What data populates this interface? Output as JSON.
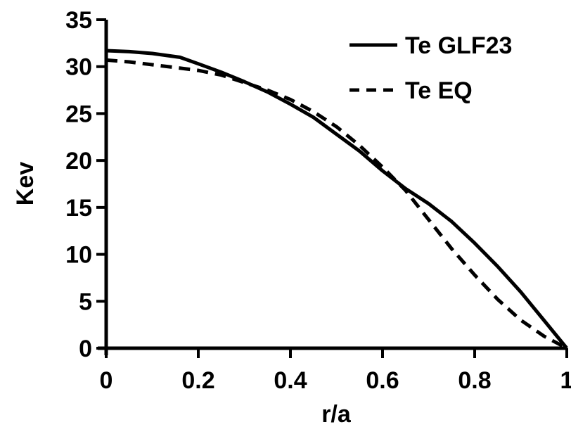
{
  "chart_data": {
    "type": "line",
    "title": "",
    "xlabel": "r/a",
    "ylabel": "Kev",
    "xlim": [
      0,
      1
    ],
    "ylim": [
      0,
      35
    ],
    "x_ticks": [
      0,
      0.2,
      0.4,
      0.6,
      0.8,
      1
    ],
    "x_tick_labels": [
      "0",
      "0.2",
      "0.4",
      "0.6",
      "0.8",
      "1"
    ],
    "y_ticks": [
      0,
      5,
      10,
      15,
      20,
      25,
      30,
      35
    ],
    "y_tick_labels": [
      "0",
      "5",
      "10",
      "15",
      "20",
      "25",
      "30",
      "35"
    ],
    "grid": false,
    "legend_position": "top-right",
    "series": [
      {
        "name": "Te GLF23",
        "style": "solid",
        "color": "#000000",
        "x": [
          0,
          0.05,
          0.1,
          0.16,
          0.2,
          0.25,
          0.3,
          0.35,
          0.4,
          0.45,
          0.5,
          0.55,
          0.6,
          0.65,
          0.7,
          0.75,
          0.8,
          0.85,
          0.9,
          0.95,
          1.0
        ],
        "y": [
          31.7,
          31.6,
          31.4,
          31.0,
          30.3,
          29.4,
          28.4,
          27.3,
          26.0,
          24.6,
          22.8,
          21.0,
          18.9,
          17.0,
          15.4,
          13.5,
          11.2,
          8.7,
          6.0,
          3.0,
          0
        ]
      },
      {
        "name": "Te EQ",
        "style": "dashed",
        "color": "#000000",
        "x": [
          0,
          0.05,
          0.1,
          0.15,
          0.2,
          0.25,
          0.3,
          0.35,
          0.4,
          0.45,
          0.5,
          0.55,
          0.6,
          0.65,
          0.7,
          0.75,
          0.8,
          0.85,
          0.9,
          0.95,
          1.0
        ],
        "y": [
          30.7,
          30.5,
          30.2,
          29.9,
          29.6,
          29.1,
          28.3,
          27.5,
          26.5,
          25.2,
          23.6,
          21.6,
          19.3,
          16.8,
          13.7,
          10.6,
          7.8,
          5.2,
          3.0,
          1.3,
          0
        ]
      }
    ]
  }
}
